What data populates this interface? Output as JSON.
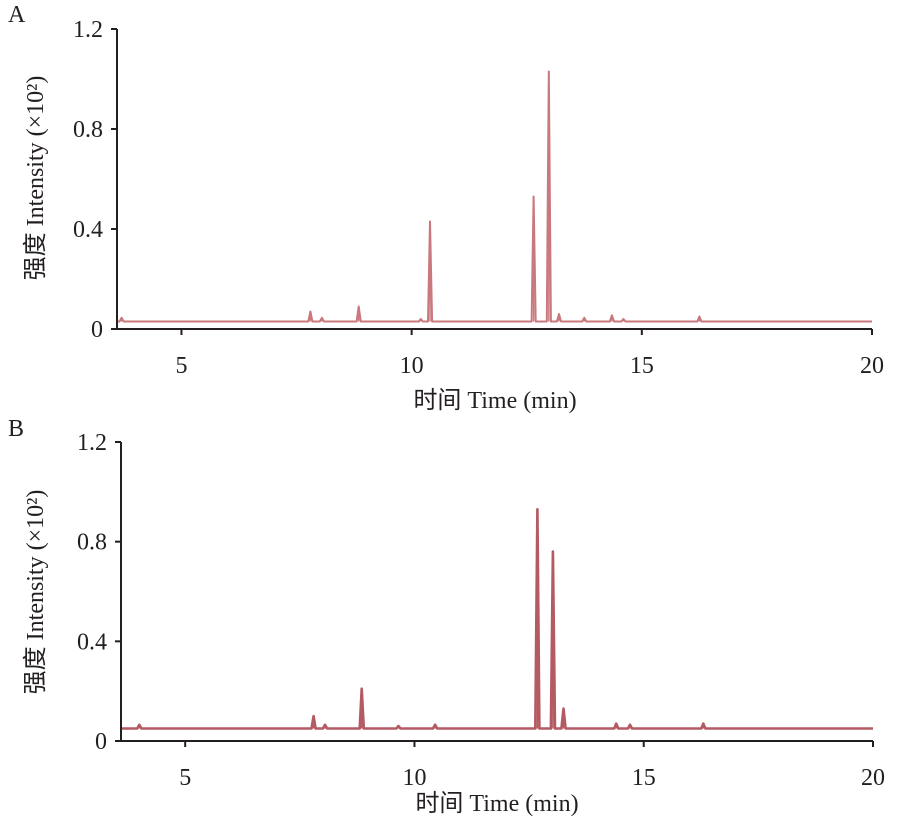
{
  "chart_data": [
    {
      "type": "line",
      "panel_label": "A",
      "xlabel": "时间 Time (min)",
      "ylabel": "强度 Intensity (×10²)",
      "xlim": [
        3.6,
        20
      ],
      "ylim": [
        0,
        1.2
      ],
      "x_ticks": [
        5,
        10,
        15,
        20
      ],
      "y_ticks": [
        0,
        0.4,
        0.8,
        1.2
      ],
      "x_tick_labels": [
        "5",
        "10",
        "15",
        "20"
      ],
      "y_tick_labels": [
        "0",
        "0.4",
        "0.8",
        "1.2"
      ],
      "baseline": 0.03,
      "line_color": "#c9787e",
      "peaks": [
        {
          "x": 3.7,
          "y": 0.045
        },
        {
          "x": 7.8,
          "y": 0.07
        },
        {
          "x": 8.05,
          "y": 0.045
        },
        {
          "x": 8.85,
          "y": 0.09
        },
        {
          "x": 10.2,
          "y": 0.04
        },
        {
          "x": 10.4,
          "y": 0.43
        },
        {
          "x": 12.65,
          "y": 0.53
        },
        {
          "x": 12.98,
          "y": 1.03
        },
        {
          "x": 13.2,
          "y": 0.06
        },
        {
          "x": 13.75,
          "y": 0.045
        },
        {
          "x": 14.35,
          "y": 0.055
        },
        {
          "x": 14.6,
          "y": 0.04
        },
        {
          "x": 16.25,
          "y": 0.05
        }
      ]
    },
    {
      "type": "line",
      "panel_label": "B",
      "xlabel": "时间 Time (min)",
      "ylabel": "强度 Intensity (×10²)",
      "xlim": [
        3.6,
        20
      ],
      "ylim": [
        0,
        1.2
      ],
      "x_ticks": [
        5,
        10,
        15,
        20
      ],
      "y_ticks": [
        0,
        0.4,
        0.8,
        1.2
      ],
      "x_tick_labels": [
        "5",
        "10",
        "15",
        "20"
      ],
      "y_tick_labels": [
        "0",
        "0.4",
        "0.8",
        "1.2"
      ],
      "baseline": 0.05,
      "line_color": "#b45a62",
      "peaks": [
        {
          "x": 4.0,
          "y": 0.065
        },
        {
          "x": 7.8,
          "y": 0.1
        },
        {
          "x": 8.05,
          "y": 0.065
        },
        {
          "x": 8.85,
          "y": 0.21
        },
        {
          "x": 9.65,
          "y": 0.06
        },
        {
          "x": 10.45,
          "y": 0.065
        },
        {
          "x": 12.68,
          "y": 0.93
        },
        {
          "x": 13.02,
          "y": 0.76
        },
        {
          "x": 13.25,
          "y": 0.13
        },
        {
          "x": 14.4,
          "y": 0.07
        },
        {
          "x": 14.7,
          "y": 0.065
        },
        {
          "x": 16.3,
          "y": 0.07
        }
      ]
    }
  ]
}
